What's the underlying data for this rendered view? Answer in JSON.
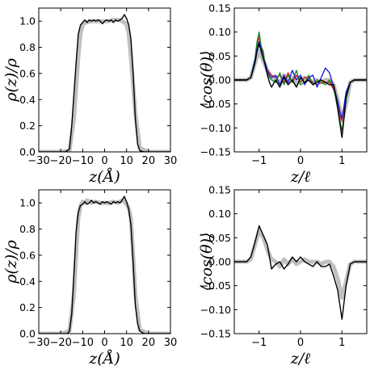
{
  "figure": {
    "colors": {
      "black": "#000000",
      "gray": "#c0c0c0",
      "red": "#e41a1c",
      "green": "#1f8f1f",
      "blue": "#1f1fdd"
    }
  },
  "chart_data": [
    {
      "type": "line",
      "xlabel": "z(Å)",
      "ylabel": "ρ(z)/ρ",
      "xlim": [
        -30,
        30
      ],
      "ylim": [
        0,
        1.1
      ],
      "xticks": [
        -30,
        -20,
        -10,
        0,
        10,
        20,
        30
      ],
      "xtick_labels": [
        "−30",
        "−20",
        "−10",
        "0",
        "10",
        "20",
        "30"
      ],
      "yticks": [
        0.0,
        0.2,
        0.4,
        0.6,
        0.8,
        1.0
      ],
      "ytick_labels": [
        "0.0",
        "0.2",
        "0.4",
        "0.6",
        "0.8",
        "1.0"
      ],
      "grid": false,
      "series": [
        {
          "color": "#c0c0c0",
          "width": 5,
          "x": [
            -30,
            -20,
            -16,
            -14,
            -12,
            -11,
            -10,
            -9,
            -8,
            -6,
            -4,
            -2,
            0,
            2,
            4,
            6,
            8,
            9,
            10,
            11,
            12,
            14,
            16,
            20,
            30
          ],
          "y": [
            0,
            0,
            0.01,
            0.25,
            0.72,
            0.9,
            0.97,
            0.99,
            0.99,
            1.0,
            1.0,
            1.0,
            1.0,
            1.0,
            1.01,
            1.01,
            1.0,
            0.99,
            0.97,
            0.9,
            0.72,
            0.3,
            0.03,
            0,
            0
          ]
        },
        {
          "color": "#000000",
          "width": 1.4,
          "x": [
            -30,
            -18,
            -16,
            -15,
            -13,
            -12,
            -11,
            -10,
            -9,
            -8,
            -7,
            -6,
            -5,
            -4,
            -3,
            -2,
            -1,
            0,
            1,
            2,
            3,
            4,
            5,
            6,
            7,
            8,
            9,
            10,
            11,
            12,
            13,
            14,
            15,
            16,
            18,
            30
          ],
          "y": [
            0,
            0,
            0.02,
            0.2,
            0.68,
            0.9,
            0.97,
            0.99,
            1.01,
            0.99,
            1.01,
            1.0,
            1.01,
            1.0,
            1.01,
            1.0,
            0.98,
            1.0,
            1.01,
            1.0,
            1.01,
            0.99,
            1.01,
            1.0,
            1.01,
            1.02,
            1.05,
            1.02,
            0.97,
            0.86,
            0.6,
            0.26,
            0.06,
            0.01,
            0,
            0
          ]
        }
      ]
    },
    {
      "type": "line",
      "xlabel": "z/ℓ",
      "ylabel": "⟨cos(θ)⟩",
      "xlim": [
        -1.6,
        1.6
      ],
      "ylim": [
        -0.15,
        0.15
      ],
      "xticks": [
        -1,
        0,
        1
      ],
      "xtick_labels": [
        "−1",
        "0",
        "1"
      ],
      "yticks": [
        -0.15,
        -0.1,
        -0.05,
        0.0,
        0.05,
        0.1,
        0.15
      ],
      "ytick_labels": [
        "−0.15",
        "−0.10",
        "−0.05",
        "0.00",
        "0.05",
        "0.10",
        "0.15"
      ],
      "grid": false,
      "series": [
        {
          "color": "#c0c0c0",
          "width": 5,
          "x": [
            -1.6,
            -1.3,
            -1.2,
            -1.1,
            -1.0,
            -0.9,
            -0.8,
            -0.7,
            -0.6,
            -0.5,
            -0.4,
            -0.3,
            -0.2,
            -0.1,
            0.0,
            0.1,
            0.2,
            0.3,
            0.4,
            0.5,
            0.6,
            0.7,
            0.8,
            0.9,
            1.0,
            1.1,
            1.2,
            1.3,
            1.6
          ],
          "y": [
            0,
            0,
            0.005,
            0.035,
            0.06,
            0.04,
            0.02,
            0.005,
            0.0,
            -0.005,
            0.01,
            -0.005,
            0.005,
            -0.01,
            0.0,
            0.005,
            0.0,
            -0.005,
            0.0,
            -0.005,
            0.0,
            0.0,
            -0.01,
            -0.04,
            -0.085,
            -0.05,
            -0.005,
            0.0,
            0.0
          ]
        },
        {
          "color": "#e41a1c",
          "width": 1.4,
          "x": [
            -1.6,
            -1.3,
            -1.2,
            -1.1,
            -1.05,
            -1.0,
            -0.95,
            -0.9,
            -0.85,
            -0.8,
            -0.75,
            -0.7,
            -0.6,
            -0.5,
            -0.4,
            -0.3,
            -0.2,
            -0.1,
            0.0,
            0.1,
            0.2,
            0.3,
            0.4,
            0.5,
            0.6,
            0.7,
            0.8,
            0.85,
            0.9,
            0.95,
            1.0,
            1.05,
            1.1,
            1.2,
            1.3,
            1.6
          ],
          "y": [
            0,
            0,
            0.005,
            0.04,
            0.07,
            0.09,
            0.07,
            0.05,
            0.03,
            0.02,
            0.015,
            0.01,
            0.005,
            0.01,
            -0.005,
            0.015,
            -0.005,
            0.01,
            -0.005,
            0.005,
            0.005,
            -0.005,
            -0.01,
            -0.005,
            -0.005,
            -0.005,
            -0.02,
            -0.035,
            -0.05,
            -0.075,
            -0.085,
            -0.06,
            -0.03,
            -0.005,
            0.0,
            0.0
          ]
        },
        {
          "color": "#1f8f1f",
          "width": 1.4,
          "x": [
            -1.6,
            -1.3,
            -1.2,
            -1.1,
            -1.05,
            -1.0,
            -0.95,
            -0.9,
            -0.85,
            -0.8,
            -0.75,
            -0.7,
            -0.6,
            -0.5,
            -0.4,
            -0.3,
            -0.2,
            -0.1,
            0.0,
            0.1,
            0.2,
            0.3,
            0.4,
            0.5,
            0.6,
            0.7,
            0.8,
            0.85,
            0.9,
            0.95,
            1.0,
            1.05,
            1.1,
            1.2,
            1.3,
            1.6
          ],
          "y": [
            0,
            0,
            0.005,
            0.045,
            0.08,
            0.1,
            0.07,
            0.06,
            0.03,
            0.015,
            0.005,
            0.0,
            -0.005,
            0.015,
            -0.01,
            0.01,
            -0.005,
            0.02,
            -0.01,
            -0.005,
            0.01,
            -0.01,
            0.0,
            -0.005,
            -0.01,
            0.0,
            -0.015,
            -0.04,
            -0.06,
            -0.085,
            -0.105,
            -0.08,
            -0.04,
            -0.005,
            0.0,
            0.0
          ]
        },
        {
          "color": "#1f1fdd",
          "width": 1.4,
          "x": [
            -1.6,
            -1.3,
            -1.2,
            -1.1,
            -1.05,
            -1.0,
            -0.95,
            -0.9,
            -0.85,
            -0.8,
            -0.75,
            -0.7,
            -0.6,
            -0.5,
            -0.4,
            -0.3,
            -0.2,
            -0.1,
            0.0,
            0.1,
            0.2,
            0.3,
            0.4,
            0.5,
            0.6,
            0.7,
            0.8,
            0.85,
            0.9,
            0.95,
            1.0,
            1.05,
            1.1,
            1.2,
            1.3,
            1.6
          ],
          "y": [
            0,
            0,
            0.005,
            0.04,
            0.065,
            0.08,
            0.065,
            0.045,
            0.035,
            0.02,
            0.01,
            0.005,
            0.01,
            -0.01,
            0.01,
            -0.005,
            0.02,
            0.0,
            0.01,
            -0.01,
            0.005,
            0.01,
            -0.015,
            0.005,
            0.025,
            0.015,
            -0.015,
            -0.03,
            -0.045,
            -0.065,
            -0.08,
            -0.055,
            -0.025,
            -0.005,
            0.0,
            0.0
          ]
        },
        {
          "color": "#000000",
          "width": 1.4,
          "x": [
            -1.6,
            -1.3,
            -1.2,
            -1.1,
            -1.05,
            -1.0,
            -0.95,
            -0.9,
            -0.85,
            -0.8,
            -0.75,
            -0.7,
            -0.6,
            -0.5,
            -0.4,
            -0.3,
            -0.2,
            -0.1,
            0.0,
            0.1,
            0.2,
            0.3,
            0.4,
            0.5,
            0.6,
            0.7,
            0.8,
            0.85,
            0.9,
            0.95,
            1.0,
            1.05,
            1.1,
            1.2,
            1.3,
            1.6
          ],
          "y": [
            0,
            0,
            0.005,
            0.035,
            0.06,
            0.075,
            0.06,
            0.045,
            0.03,
            0.01,
            -0.005,
            -0.015,
            0.0,
            -0.015,
            0.005,
            -0.01,
            0.0,
            -0.015,
            0.005,
            -0.005,
            0.0,
            -0.01,
            -0.005,
            0.0,
            -0.005,
            -0.01,
            -0.01,
            -0.03,
            -0.06,
            -0.09,
            -0.12,
            -0.08,
            -0.035,
            -0.005,
            0.0,
            0.0
          ]
        }
      ]
    },
    {
      "type": "line",
      "xlabel": "z(Å)",
      "ylabel": "ρ(z)/ρ",
      "xlim": [
        -30,
        30
      ],
      "ylim": [
        0,
        1.1
      ],
      "xticks": [
        -30,
        -20,
        -10,
        0,
        10,
        20,
        30
      ],
      "xtick_labels": [
        "−30",
        "−20",
        "−10",
        "0",
        "10",
        "20",
        "30"
      ],
      "yticks": [
        0.0,
        0.2,
        0.4,
        0.6,
        0.8,
        1.0
      ],
      "ytick_labels": [
        "0.0",
        "0.2",
        "0.4",
        "0.6",
        "0.8",
        "1.0"
      ],
      "grid": false,
      "series": [
        {
          "color": "#c0c0c0",
          "width": 5,
          "x": [
            -30,
            -20,
            -16,
            -14,
            -13,
            -12,
            -11,
            -10,
            -9,
            -8,
            -6,
            -4,
            -2,
            0,
            2,
            4,
            6,
            8,
            9,
            10,
            11,
            12,
            13,
            14,
            16,
            20,
            30
          ],
          "y": [
            0,
            0,
            0.02,
            0.3,
            0.6,
            0.88,
            0.98,
            1.01,
            1.0,
            1.02,
            1.0,
            1.01,
            1.0,
            1.0,
            1.0,
            1.01,
            1.0,
            1.02,
            1.01,
            0.99,
            0.96,
            0.88,
            0.6,
            0.3,
            0.03,
            0,
            0
          ]
        },
        {
          "color": "#000000",
          "width": 1.4,
          "x": [
            -30,
            -17,
            -16,
            -15,
            -14,
            -13,
            -12,
            -11,
            -10,
            -9,
            -8,
            -7,
            -6,
            -5,
            -4,
            -3,
            -2,
            -1,
            0,
            1,
            2,
            3,
            4,
            5,
            6,
            7,
            8,
            9,
            10,
            11,
            12,
            13,
            14,
            15,
            16,
            18,
            30
          ],
          "y": [
            0,
            0,
            0.02,
            0.15,
            0.45,
            0.78,
            0.93,
            0.98,
            0.99,
            1.01,
            0.99,
            1.0,
            1.02,
            1.0,
            1.01,
            1.0,
            0.99,
            1.01,
            1.0,
            1.01,
            1.0,
            0.99,
            1.01,
            1.0,
            1.01,
            1.0,
            1.02,
            1.05,
            1.01,
            0.95,
            0.83,
            0.55,
            0.22,
            0.08,
            0.02,
            0,
            0
          ]
        }
      ]
    },
    {
      "type": "line",
      "xlabel": "z/ℓ",
      "ylabel": "⟨cos(θ)⟩",
      "xlim": [
        -1.6,
        1.6
      ],
      "ylim": [
        -0.15,
        0.15
      ],
      "xticks": [
        -1,
        0,
        1
      ],
      "xtick_labels": [
        "−1",
        "0",
        "1"
      ],
      "yticks": [
        -0.15,
        -0.1,
        -0.05,
        0.0,
        0.05,
        0.1,
        0.15
      ],
      "ytick_labels": [
        "−0.15",
        "−0.10",
        "−0.05",
        "0.00",
        "0.05",
        "0.10",
        "0.15"
      ],
      "grid": false,
      "series": [
        {
          "color": "#c0c0c0",
          "width": 5,
          "x": [
            -1.6,
            -1.3,
            -1.2,
            -1.1,
            -1.0,
            -0.9,
            -0.8,
            -0.7,
            -0.6,
            -0.5,
            -0.4,
            -0.3,
            -0.2,
            -0.1,
            0.0,
            0.1,
            0.2,
            0.3,
            0.4,
            0.5,
            0.6,
            0.7,
            0.8,
            0.9,
            1.0,
            1.1,
            1.2,
            1.3,
            1.6
          ],
          "y": [
            0,
            0,
            0.005,
            0.035,
            0.065,
            0.05,
            0.025,
            0.005,
            0.0,
            -0.01,
            0.005,
            -0.005,
            0.005,
            -0.005,
            0.0,
            0.005,
            0.0,
            0.0,
            0.0,
            -0.005,
            0.0,
            0.0,
            -0.01,
            -0.035,
            -0.075,
            -0.04,
            -0.005,
            0.0,
            0.0
          ]
        },
        {
          "color": "#000000",
          "width": 1.4,
          "x": [
            -1.6,
            -1.3,
            -1.2,
            -1.1,
            -1.0,
            -0.9,
            -0.8,
            -0.7,
            -0.6,
            -0.5,
            -0.4,
            -0.3,
            -0.2,
            -0.1,
            0.0,
            0.1,
            0.2,
            0.3,
            0.4,
            0.5,
            0.6,
            0.7,
            0.8,
            0.9,
            1.0,
            1.1,
            1.2,
            1.3,
            1.6
          ],
          "y": [
            0,
            0,
            0.01,
            0.04,
            0.075,
            0.055,
            0.035,
            -0.015,
            -0.005,
            0.0,
            -0.015,
            -0.005,
            0.01,
            0.0,
            0.01,
            0.0,
            -0.005,
            -0.01,
            0.0,
            -0.01,
            -0.01,
            -0.005,
            -0.03,
            -0.06,
            -0.12,
            -0.05,
            -0.005,
            0.0,
            0.0
          ]
        }
      ]
    }
  ]
}
